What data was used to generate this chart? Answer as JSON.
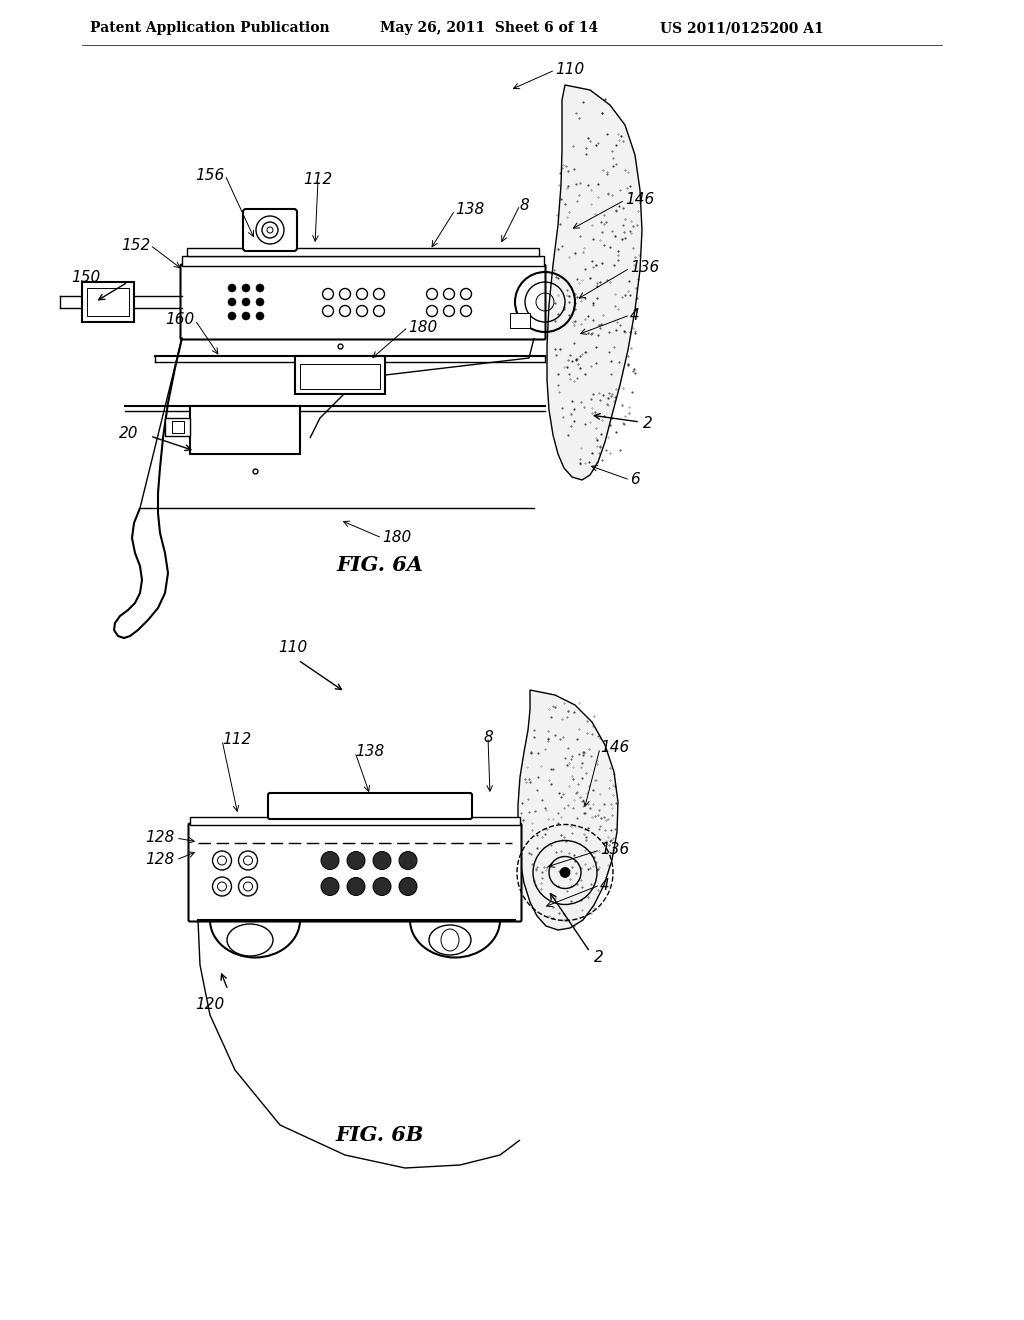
{
  "background_color": "#ffffff",
  "header_left": "Patent Application Publication",
  "header_center": "May 26, 2011  Sheet 6 of 14",
  "header_right": "US 2011/0125200 A1",
  "fig6a_label": "FIG. 6A",
  "fig6b_label": "FIG. 6B",
  "line_color": "#000000",
  "label_fontsize": 11,
  "header_fontsize": 10
}
